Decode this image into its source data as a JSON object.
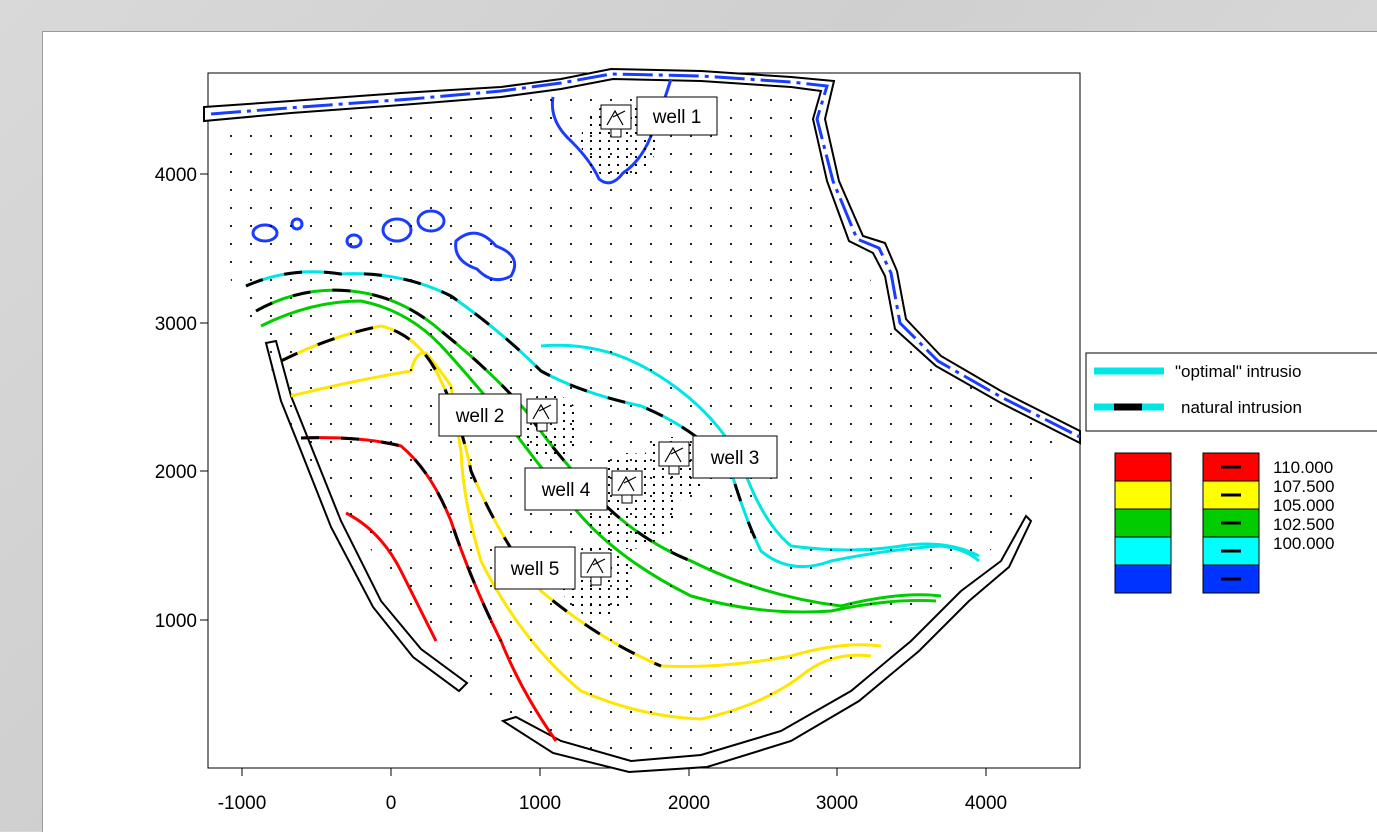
{
  "map": {
    "x_ticks": [
      "-1000",
      "0",
      "1000",
      "2000",
      "3000",
      "4000"
    ],
    "y_ticks": [
      "1000",
      "2000",
      "3000",
      "4000"
    ],
    "wells": [
      "well 1",
      "well 2",
      "well 3",
      "well 4",
      "well 5"
    ],
    "legend": {
      "line_optimal": "\"optimal\" intrusio",
      "line_natural": "natural intrusion",
      "levels": [
        "110.000",
        "107.500",
        "105.000",
        "102.500",
        "100.000"
      ],
      "colors": [
        "#ff0000",
        "#ffff00",
        "#00cc00",
        "#00ffff",
        "#0033ff"
      ]
    }
  }
}
